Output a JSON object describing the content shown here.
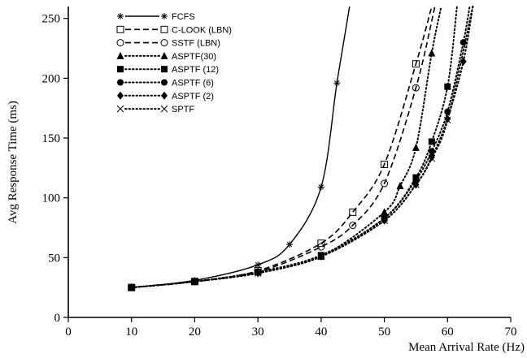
{
  "chart_data": {
    "type": "line",
    "xlabel": "Mean Arrival Rate (Hz)",
    "ylabel": "Avg Response Time (ms)",
    "xlim": [
      0,
      70
    ],
    "ylim": [
      0,
      260
    ],
    "xticks": [
      "0",
      "10",
      "20",
      "30",
      "40",
      "50",
      "60",
      "70"
    ],
    "yticks": [
      "0",
      "50",
      "100",
      "150",
      "200",
      "250"
    ],
    "grid": false,
    "legend_position": "top-left",
    "series": [
      {
        "name": "FCFS",
        "style": "solid",
        "marker": "asterisk",
        "x": [
          10,
          20,
          30,
          35,
          40,
          42.5,
          44.5
        ],
        "y": [
          25,
          31,
          44,
          61,
          109,
          196,
          260
        ]
      },
      {
        "name": "C-LOOK (LBN)",
        "style": "dashed",
        "marker": "open-square",
        "x": [
          10,
          20,
          30,
          40,
          45,
          50,
          55,
          57.5
        ],
        "y": [
          25,
          30,
          39,
          62,
          88,
          128,
          212,
          260
        ]
      },
      {
        "name": "SSTF (LBN)",
        "style": "dashed",
        "marker": "open-circle",
        "x": [
          10,
          20,
          30,
          40,
          45,
          50,
          55,
          58
        ],
        "y": [
          25,
          30,
          38,
          59,
          77,
          112,
          192,
          260
        ]
      },
      {
        "name": "ASPTF(30)",
        "style": "dotted",
        "marker": "filled-triangle",
        "x": [
          10,
          20,
          30,
          40,
          50,
          52.5,
          55,
          57.5,
          59
        ],
        "y": [
          25,
          30,
          38,
          51,
          88,
          110,
          142,
          221,
          260
        ]
      },
      {
        "name": "ASPTF (12)",
        "style": "dotted",
        "marker": "filled-square",
        "x": [
          10,
          20,
          30,
          40,
          50,
          55,
          57.5,
          60,
          61.5
        ],
        "y": [
          25,
          30,
          38,
          52,
          83,
          117,
          147,
          193,
          260
        ]
      },
      {
        "name": "ASPTF (6)",
        "style": "dotted",
        "marker": "filled-circle",
        "x": [
          10,
          20,
          30,
          40,
          50,
          55,
          57.5,
          60,
          62.5,
          63.5
        ],
        "y": [
          25,
          30,
          38,
          51,
          83,
          115,
          139,
          172,
          230,
          260
        ]
      },
      {
        "name": "ASPTF (2)",
        "style": "dotted",
        "marker": "filled-diamond",
        "x": [
          10,
          20,
          30,
          40,
          50,
          55,
          57.5,
          60,
          62.5,
          64
        ],
        "y": [
          25,
          30,
          37,
          51,
          81,
          111,
          134,
          166,
          214,
          260
        ]
      },
      {
        "name": "SPTF",
        "style": "dotted",
        "marker": "x-cross",
        "x": [
          10,
          20,
          30,
          40,
          50,
          55,
          57.5,
          60,
          64
        ],
        "y": [
          25,
          30,
          37,
          51,
          81,
          111,
          133,
          165,
          260
        ]
      }
    ]
  }
}
